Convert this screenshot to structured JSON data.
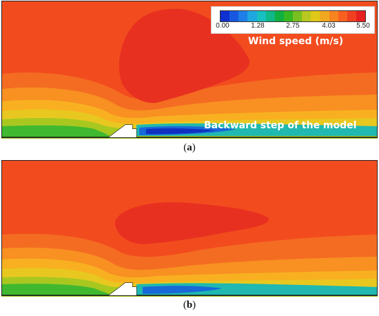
{
  "legend": {
    "title": "Wind speed (m/s)",
    "ticks": [
      "0.00",
      "1.28",
      "2.75",
      "4.03",
      "5.50"
    ],
    "colors": [
      "#1030d0",
      "#1858e0",
      "#1e7fe8",
      "#1fa8e0",
      "#18c0c0",
      "#10b888",
      "#10b040",
      "#38b820",
      "#78c020",
      "#b8c820",
      "#e0c818",
      "#f0a820",
      "#f88420",
      "#f86020",
      "#f04020",
      "#e82020"
    ]
  },
  "annotation": {
    "step_label": "Backward step of the model"
  },
  "captions": {
    "a": "a",
    "b": "b"
  },
  "field_colors": {
    "max": "#e83020",
    "high": "#f04a1e",
    "mid_high": "#f46c22",
    "mid": "#f89022",
    "mid_low": "#f8b020",
    "yellow": "#e8c820",
    "lime": "#a8c820",
    "green": "#40b830",
    "cyan": "#20b8b0",
    "blue": "#1868d8",
    "deep_blue": "#1030c0"
  }
}
